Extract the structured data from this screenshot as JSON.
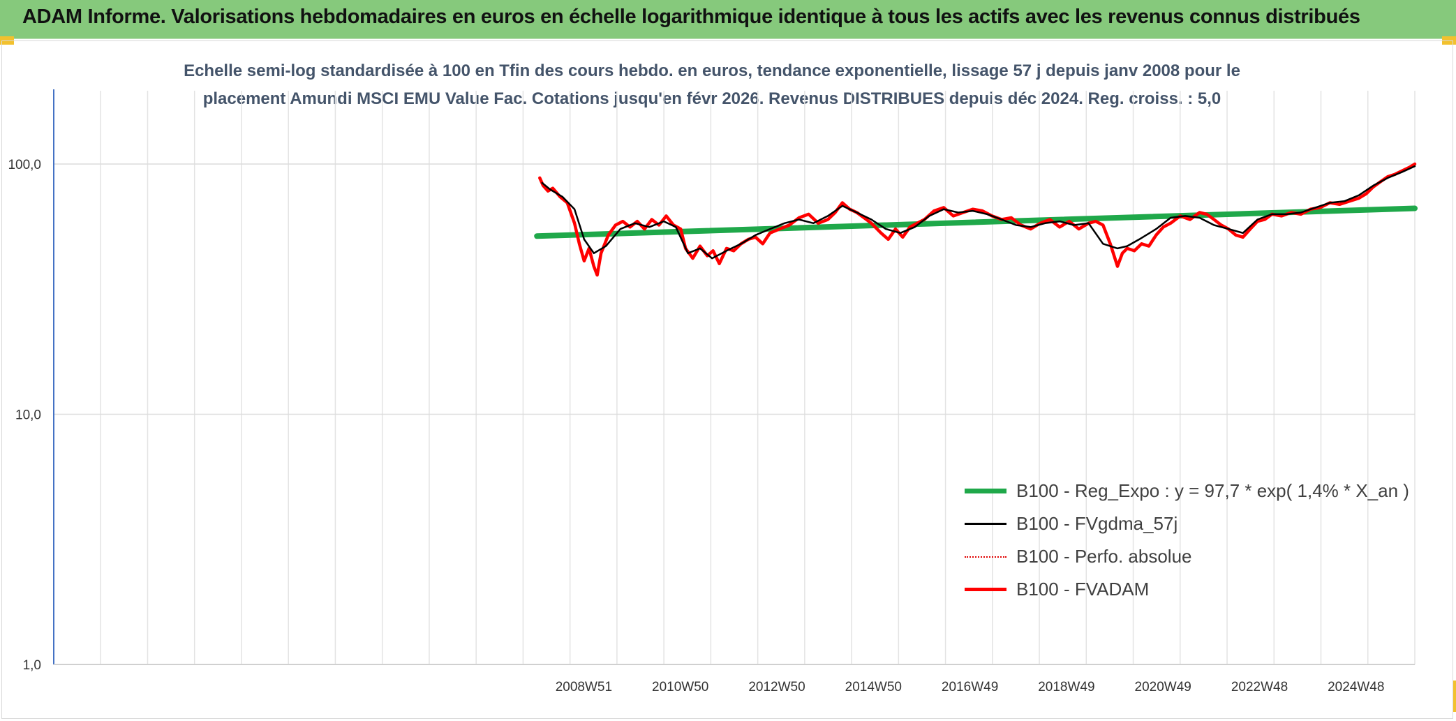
{
  "header": {
    "title": "ADAM Informe. Valorisations hebdomadaires en euros en échelle logarithmique identique à tous les actifs avec les revenus connus distribués"
  },
  "chart_data": {
    "type": "line",
    "title_line1": "Echelle semi-log standardisée à 100 en Tfin des cours hebdo. en euros, tendance exponentielle, lissage 57 j depuis janv 2008 pour le",
    "title_line2": "placement Amundi MSCI EMU Value Fac. Cotations jusqu'en févr 2026. Revenus DISTRIBUES depuis déc 2024. Reg. croiss. : 5,0",
    "y_scale": "log",
    "ylim": [
      1,
      100
    ],
    "y_ticks": [
      "100,0",
      "10,0",
      "1,0"
    ],
    "x_ticks": [
      "2008W51",
      "2010W50",
      "2012W50",
      "2014W50",
      "2016W49",
      "2018W49",
      "2020W49",
      "2022W48",
      "2024W48"
    ],
    "x_range_years": [
      1997.96,
      2026.16
    ],
    "grid": true,
    "legend_position": "bottom-right",
    "series": [
      {
        "name": "B100 - Reg_Expo : y = 97,7 * exp( 1,4% *  X_an )",
        "color": "#1fa84a",
        "style": "thick",
        "x": [
          2007.97,
          2026.16
        ],
        "values": [
          51.5,
          66.5
        ]
      },
      {
        "name": "B100 - FVgdma_57j",
        "color": "#000000",
        "style": "thin",
        "x": [
          2008.08,
          2008.25,
          2008.5,
          2008.75,
          2008.95,
          2009.15,
          2009.4,
          2009.7,
          2010.0,
          2010.3,
          2010.6,
          2010.85,
          2011.1,
          2011.35,
          2011.6,
          2011.9,
          2012.2,
          2012.5,
          2012.8,
          2013.1,
          2013.4,
          2013.7,
          2014.0,
          2014.3,
          2014.6,
          2014.9,
          2015.2,
          2015.5,
          2015.8,
          2016.1,
          2016.4,
          2016.7,
          2017.0,
          2017.3,
          2017.6,
          2017.9,
          2018.2,
          2018.5,
          2018.8,
          2019.1,
          2019.4,
          2019.7,
          2020.0,
          2020.2,
          2020.45,
          2020.8,
          2021.1,
          2021.4,
          2021.7,
          2022.0,
          2022.3,
          2022.6,
          2022.9,
          2023.2,
          2023.5,
          2023.8,
          2024.1,
          2024.4,
          2024.7,
          2025.0,
          2025.3,
          2025.6,
          2025.9,
          2026.16
        ],
        "values": [
          84,
          79,
          74,
          66,
          50,
          44,
          47,
          55,
          58,
          56,
          59,
          56,
          44,
          46,
          42,
          45,
          48,
          52,
          55,
          58,
          60,
          58,
          62,
          68,
          64,
          60,
          55,
          53,
          56,
          62,
          66,
          64,
          65,
          63,
          60,
          57,
          56,
          58,
          59,
          57,
          58,
          48,
          46,
          47,
          50,
          55,
          61,
          62,
          61,
          57,
          55,
          53,
          60,
          63,
          63,
          64,
          67,
          70,
          71,
          75,
          82,
          88,
          93,
          98
        ]
      },
      {
        "name": "B100 - Perfo. absolue",
        "color": "#e00000",
        "style": "dotted",
        "x": [
          2008.08,
          2026.16
        ],
        "values": [
          88,
          99
        ]
      },
      {
        "name": "B100 - FVADAM",
        "color": "#ff0000",
        "style": "thick",
        "x": [
          2008.03,
          2008.1,
          2008.2,
          2008.3,
          2008.45,
          2008.6,
          2008.75,
          2008.85,
          2008.95,
          2009.05,
          2009.15,
          2009.22,
          2009.3,
          2009.45,
          2009.6,
          2009.75,
          2009.9,
          2010.05,
          2010.2,
          2010.35,
          2010.5,
          2010.65,
          2010.8,
          2010.95,
          2011.05,
          2011.2,
          2011.35,
          2011.5,
          2011.62,
          2011.75,
          2011.9,
          2012.05,
          2012.2,
          2012.35,
          2012.5,
          2012.65,
          2012.8,
          2013.0,
          2013.2,
          2013.4,
          2013.6,
          2013.8,
          2014.0,
          2014.15,
          2014.3,
          2014.45,
          2014.6,
          2014.75,
          2014.9,
          2015.1,
          2015.25,
          2015.4,
          2015.55,
          2015.7,
          2015.85,
          2016.0,
          2016.2,
          2016.4,
          2016.6,
          2016.8,
          2017.0,
          2017.2,
          2017.4,
          2017.6,
          2017.8,
          2018.0,
          2018.2,
          2018.4,
          2018.6,
          2018.8,
          2019.0,
          2019.2,
          2019.4,
          2019.55,
          2019.7,
          2019.85,
          2020.0,
          2020.1,
          2020.2,
          2020.35,
          2020.5,
          2020.65,
          2020.8,
          2020.95,
          2021.1,
          2021.3,
          2021.5,
          2021.7,
          2021.85,
          2022.0,
          2022.15,
          2022.3,
          2022.45,
          2022.6,
          2022.75,
          2022.9,
          2023.05,
          2023.2,
          2023.4,
          2023.6,
          2023.8,
          2024.0,
          2024.2,
          2024.4,
          2024.6,
          2024.8,
          2025.0,
          2025.15,
          2025.3,
          2025.45,
          2025.6,
          2025.75,
          2025.9,
          2026.05,
          2026.16
        ],
        "values": [
          88,
          82,
          78,
          80,
          74,
          70,
          58,
          48,
          41,
          46,
          39,
          36,
          44,
          52,
          57,
          59,
          56,
          59,
          55,
          60,
          57,
          62,
          57,
          55,
          46,
          42,
          47,
          43,
          45,
          40,
          46,
          45,
          48,
          50,
          51,
          48,
          53,
          55,
          57,
          61,
          63,
          58,
          60,
          64,
          70,
          66,
          64,
          61,
          58,
          53,
          50,
          55,
          51,
          56,
          58,
          60,
          65,
          67,
          62,
          64,
          66,
          65,
          62,
          60,
          61,
          57,
          55,
          58,
          60,
          56,
          59,
          55,
          58,
          59,
          57,
          48,
          39,
          44,
          46,
          45,
          48,
          47,
          52,
          56,
          58,
          62,
          60,
          64,
          63,
          60,
          57,
          55,
          52,
          51,
          55,
          59,
          60,
          63,
          62,
          64,
          63,
          66,
          67,
          70,
          69,
          71,
          73,
          76,
          81,
          85,
          89,
          91,
          94,
          97,
          100
        ]
      }
    ]
  }
}
